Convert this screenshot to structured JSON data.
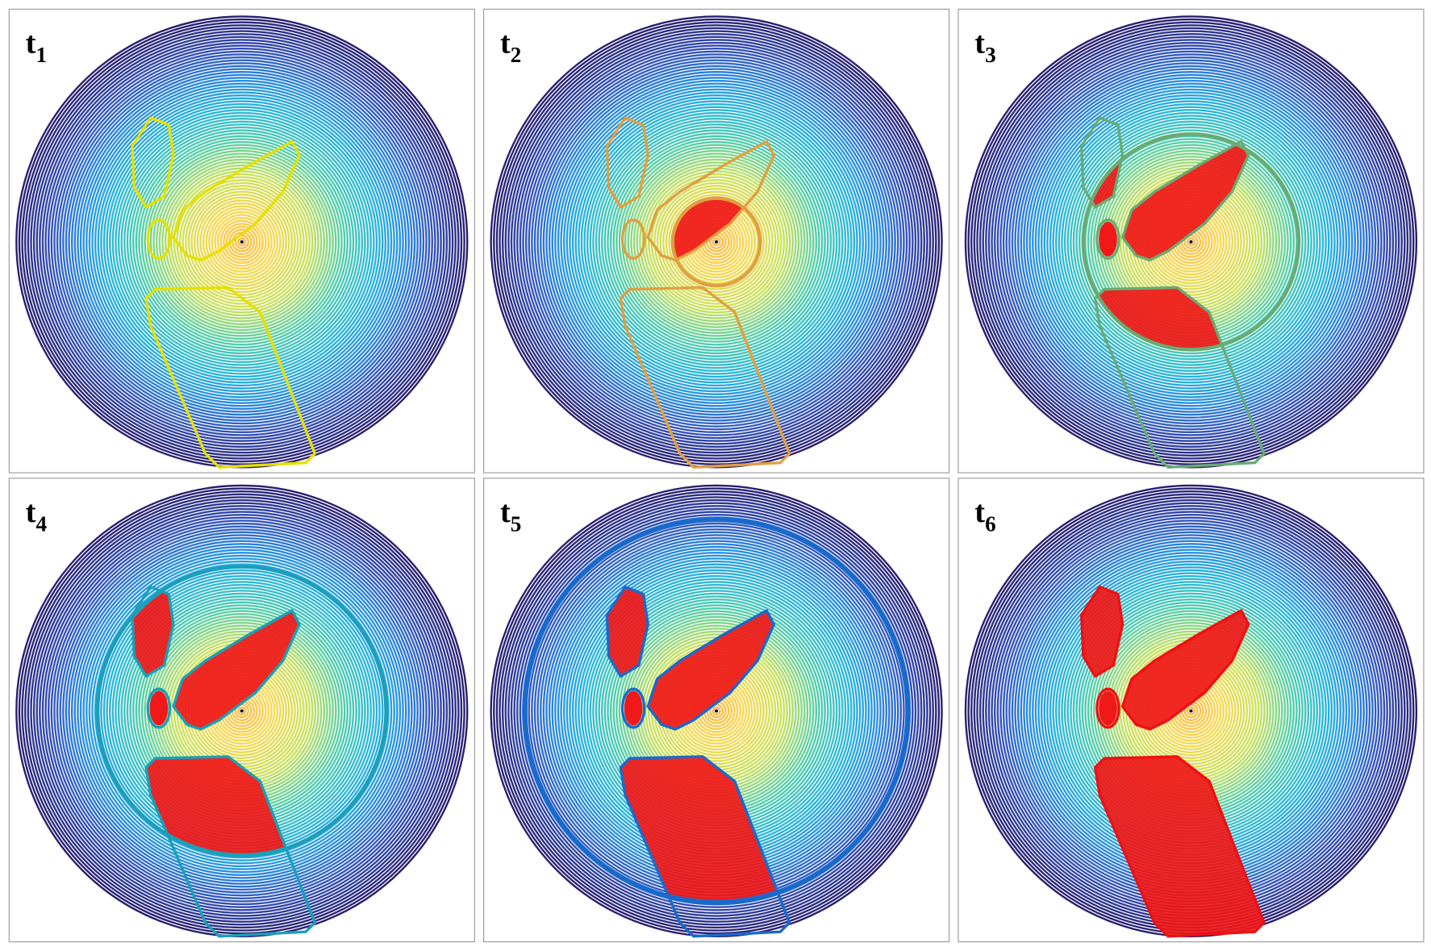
{
  "panels": [
    {
      "label": "t",
      "subscript": "1"
    },
    {
      "label": "t",
      "subscript": "2"
    },
    {
      "label": "t",
      "subscript": "3"
    },
    {
      "label": "t",
      "subscript": "4"
    },
    {
      "label": "t",
      "subscript": "5"
    },
    {
      "label": "t",
      "subscript": "6"
    }
  ]
}
